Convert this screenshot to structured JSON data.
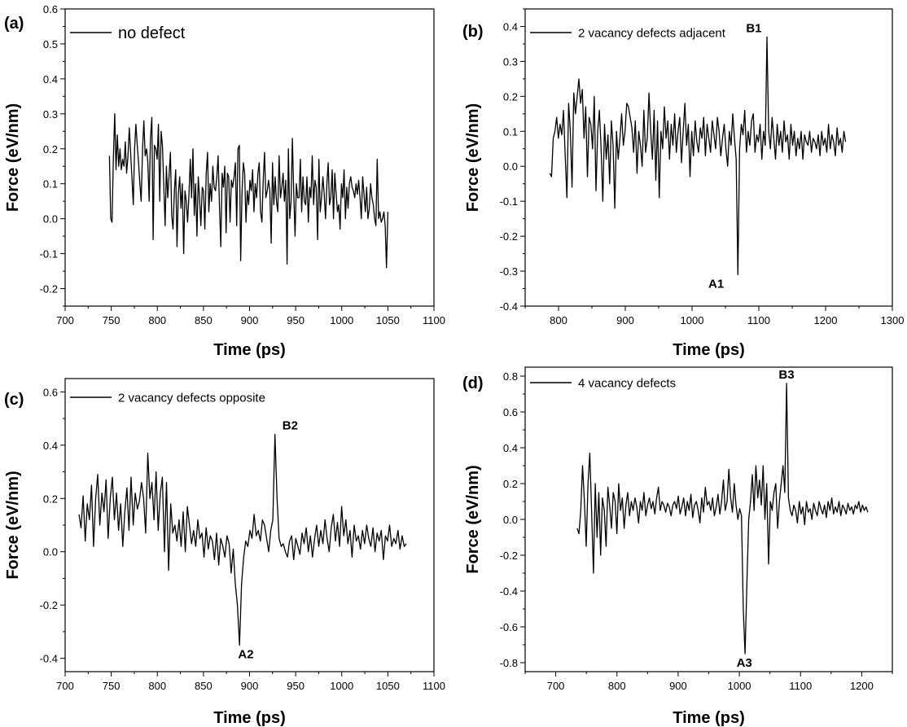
{
  "chart_data": [
    {
      "type": "line",
      "panel_label": "(a)",
      "legend": "no defect",
      "xlabel": "Time (ps)",
      "ylabel": "Force (eV/nm)",
      "xlim": [
        700,
        1100
      ],
      "ylim": [
        -0.25,
        0.6
      ],
      "xticks": [
        700,
        750,
        800,
        850,
        900,
        950,
        1000,
        1050,
        1100
      ],
      "yticks": [
        -0.2,
        -0.1,
        0.0,
        0.1,
        0.2,
        0.3,
        0.4,
        0.5,
        0.6
      ],
      "ytick_labels": [
        "-0.2",
        "-0.1",
        "0.0",
        "0.1",
        "0.2",
        "0.3",
        "0.4",
        "0.5",
        "0.6"
      ],
      "annotations": [],
      "series": [
        {
          "name": "no defect",
          "x_start": 748,
          "x_end": 1050,
          "values": [
            0.18,
            0.0,
            -0.01,
            0.17,
            0.3,
            0.14,
            0.24,
            0.15,
            0.2,
            0.14,
            0.17,
            0.15,
            0.22,
            0.13,
            0.18,
            0.26,
            0.19,
            0.12,
            0.04,
            0.2,
            0.27,
            0.21,
            0.16,
            0.1,
            0.05,
            0.2,
            0.28,
            0.18,
            0.2,
            0.16,
            0.05,
            0.23,
            0.29,
            -0.06,
            0.21,
            0.2,
            0.17,
            0.27,
            0.05,
            0.25,
            0.21,
            0.1,
            -0.02,
            0.15,
            0.06,
            0.12,
            0.19,
            0.01,
            -0.03,
            0.08,
            0.14,
            -0.08,
            0.07,
            0.12,
            0.03,
            0.1,
            -0.1,
            0.08,
            0.05,
            -0.01,
            0.07,
            0.17,
            0.06,
            0.2,
            0.01,
            0.1,
            -0.05,
            0.12,
            0.06,
            -0.02,
            0.09,
            0.08,
            -0.03,
            0.13,
            0.19,
            0.02,
            0.1,
            0.05,
            0.15,
            0.09,
            0.08,
            0.12,
            0.18,
            0.04,
            -0.08,
            0.13,
            0.09,
            0.15,
            -0.04,
            0.13,
            0.12,
            -0.01,
            0.11,
            0.09,
            0.12,
            0.16,
            -0.02,
            0.2,
            0.21,
            -0.12,
            0.07,
            0.16,
            0.13,
            -0.01,
            0.08,
            0.04,
            0.11,
            0.08,
            0.14,
            0.02,
            0.1,
            0.06,
            0.13,
            0.16,
            0.02,
            -0.01,
            0.11,
            0.19,
            0.06,
            0.08,
            0.11,
            0.08,
            -0.07,
            0.16,
            0.04,
            0.12,
            0.05,
            0.02,
            0.18,
            0.06,
            0.09,
            0.13,
            0.05,
            0.11,
            -0.13,
            0.2,
            0.0,
            0.05,
            0.23,
            0.08,
            -0.05,
            0.1,
            0.06,
            0.06,
            0.17,
            0.02,
            0.12,
            0.05,
            0.04,
            0.12,
            -0.01,
            0.09,
            0.06,
            0.18,
            0.04,
            0.11,
            0.09,
            -0.06,
            0.17,
            0.02,
            0.06,
            0.12,
            0.07,
            0.0,
            0.1,
            0.16,
            0.04,
            0.06,
            0.14,
            0.0,
            0.13,
            0.07,
            0.02,
            0.04,
            -0.03,
            0.1,
            0.06,
            0.14,
            0.0,
            0.09,
            0.03,
            0.1,
            0.12,
            0.09,
            0.08,
            0.06,
            0.1,
            0.07,
            0.11,
            0.06,
            0.0,
            0.12,
            0.07,
            0.02,
            0.09,
            0.0,
            0.03,
            0.1,
            0.06,
            0.04,
            0.0,
            -0.02,
            0.17,
            0.0,
            0.02,
            -0.01,
            0.0,
            0.02,
            -0.02,
            -0.14,
            0.02
          ]
        }
      ]
    },
    {
      "type": "line",
      "panel_label": "(b)",
      "legend": "2 vacancy defects adjacent",
      "xlabel": "Time (ps)",
      "ylabel": "Force (eV/nm)",
      "xlim": [
        750,
        1300
      ],
      "ylim": [
        -0.4,
        0.45
      ],
      "xticks": [
        800,
        900,
        1000,
        1100,
        1200,
        1300
      ],
      "yticks": [
        -0.4,
        -0.3,
        -0.2,
        -0.1,
        0.0,
        0.1,
        0.2,
        0.3,
        0.4
      ],
      "ytick_labels": [
        "-0.4",
        "-0.3",
        "-0.2",
        "-0.1",
        "0.0",
        "0.1",
        "0.2",
        "0.3",
        "0.4"
      ],
      "annotations": [
        {
          "text": "A1",
          "x": 1022,
          "y": -0.31,
          "pos": "below"
        },
        {
          "text": "B1",
          "x": 1076,
          "y": 0.37,
          "pos": "above-right"
        }
      ],
      "series": [
        {
          "name": "2 vacancy defects adjacent",
          "x_start": 787,
          "x_end": 1230,
          "values": [
            -0.02,
            -0.03,
            0.08,
            0.1,
            0.14,
            0.08,
            0.12,
            0.09,
            0.16,
            0.03,
            -0.09,
            0.18,
            0.1,
            -0.06,
            0.21,
            0.15,
            0.2,
            0.25,
            0.18,
            0.22,
            0.08,
            0.17,
            -0.03,
            0.14,
            0.12,
            0.05,
            0.2,
            -0.07,
            0.1,
            0.16,
            0.05,
            -0.1,
            0.12,
            0.02,
            0.09,
            -0.05,
            0.13,
            0.06,
            -0.12,
            0.1,
            0.02,
            0.08,
            0.15,
            0.06,
            0.1,
            0.18,
            0.17,
            0.14,
            0.11,
            0.04,
            0.13,
            -0.02,
            0.1,
            0.06,
            0.0,
            0.16,
            0.04,
            0.08,
            0.21,
            0.1,
            0.02,
            0.16,
            -0.04,
            0.13,
            -0.09,
            0.1,
            0.05,
            0.17,
            0.08,
            0.13,
            0.02,
            0.12,
            0.06,
            0.15,
            0.04,
            0.1,
            0.14,
            0.01,
            0.1,
            0.18,
            0.06,
            0.12,
            -0.03,
            0.1,
            0.03,
            0.13,
            0.07,
            0.04,
            0.11,
            0.08,
            0.14,
            0.03,
            0.12,
            0.08,
            0.04,
            0.13,
            0.09,
            0.05,
            0.14,
            0.1,
            0.03,
            0.08,
            0.12,
            0.05,
            0.0,
            0.1,
            0.06,
            0.15,
            0.08,
            0.02,
            -0.31,
            0.05,
            0.12,
            0.09,
            0.16,
            0.04,
            0.1,
            0.06,
            0.13,
            0.15,
            0.04,
            0.09,
            0.07,
            0.12,
            0.02,
            0.1,
            0.06,
            0.37,
            0.1,
            0.05,
            0.14,
            0.08,
            0.02,
            0.12,
            0.06,
            0.1,
            0.04,
            0.13,
            0.07,
            0.09,
            0.02,
            0.12,
            0.06,
            0.1,
            0.03,
            0.08,
            0.05,
            0.1,
            0.02,
            0.09,
            0.07,
            0.06,
            0.1,
            0.04,
            0.08,
            0.07,
            0.05,
            0.09,
            0.03,
            0.1,
            0.06,
            0.08,
            0.04,
            0.12,
            0.05,
            0.09,
            0.07,
            0.03,
            0.11,
            0.06,
            0.08,
            0.04,
            0.1,
            0.07
          ]
        }
      ]
    },
    {
      "type": "line",
      "panel_label": "(c)",
      "legend": "2 vacancy defects opposite",
      "xlabel": "Time (ps)",
      "ylabel": "Force (eV/nm)",
      "xlim": [
        700,
        1100
      ],
      "ylim": [
        -0.45,
        0.65
      ],
      "xticks": [
        700,
        750,
        800,
        850,
        900,
        950,
        1000,
        1050,
        1100
      ],
      "yticks": [
        -0.4,
        -0.2,
        0.0,
        0.2,
        0.4,
        0.6
      ],
      "ytick_labels": [
        "-0.4",
        "-0.2",
        "0.0",
        "0.2",
        "0.4",
        "0.6"
      ],
      "annotations": [
        {
          "text": "A2",
          "x": 884,
          "y": -0.35,
          "pos": "below-right"
        },
        {
          "text": "B2",
          "x": 932,
          "y": 0.44,
          "pos": "above-right"
        }
      ],
      "series": [
        {
          "name": "2 vacancy defects opposite",
          "x_start": 715,
          "x_end": 1070,
          "values": [
            0.14,
            0.09,
            0.21,
            0.04,
            0.18,
            0.12,
            0.25,
            0.02,
            0.2,
            0.29,
            0.1,
            0.22,
            0.15,
            0.27,
            0.05,
            0.2,
            0.28,
            0.12,
            0.22,
            0.08,
            0.18,
            0.02,
            0.15,
            0.24,
            0.08,
            0.28,
            0.1,
            0.22,
            0.16,
            0.19,
            0.26,
            0.2,
            0.07,
            0.37,
            0.2,
            0.26,
            0.12,
            0.3,
            0.08,
            0.22,
            0.28,
            0.0,
            0.26,
            -0.07,
            0.18,
            0.07,
            0.1,
            0.04,
            0.12,
            0.02,
            0.15,
            0.0,
            0.17,
            0.1,
            0.03,
            0.08,
            0.02,
            0.12,
            0.05,
            0.07,
            -0.02,
            0.09,
            0.01,
            0.06,
            0.04,
            -0.03,
            0.07,
            -0.05,
            0.05,
            0.02,
            -0.02,
            0.06,
            0.03,
            -0.08,
            0.01,
            -0.12,
            -0.2,
            -0.35,
            -0.12,
            -0.02,
            0.04,
            0.02,
            0.08,
            0.05,
            0.14,
            0.06,
            0.08,
            0.04,
            0.12,
            0.1,
            0.05,
            0.0,
            0.08,
            0.12,
            0.44,
            0.2,
            0.05,
            0.02,
            0.03,
            0.0,
            -0.02,
            0.04,
            0.06,
            -0.03,
            0.05,
            0.02,
            -0.01,
            0.07,
            0.03,
            0.09,
            0.0,
            0.06,
            -0.02,
            0.05,
            0.1,
            0.02,
            0.08,
            0.03,
            0.12,
            0.05,
            0.0,
            0.09,
            0.14,
            0.04,
            0.11,
            0.02,
            0.17,
            0.06,
            0.12,
            0.03,
            0.08,
            -0.02,
            0.1,
            0.04,
            0.06,
            0.01,
            0.08,
            0.03,
            0.1,
            0.05,
            0.02,
            0.09,
            0.0,
            0.07,
            0.04,
            0.08,
            -0.03,
            0.06,
            0.04,
            0.1,
            0.02,
            0.05,
            0.03,
            0.08,
            0.01,
            0.06,
            0.02,
            0.03
          ]
        }
      ]
    },
    {
      "type": "line",
      "panel_label": "(d)",
      "legend": "4 vacancy defects",
      "xlabel": "Time (ps)",
      "ylabel": "Force (eV/nm)",
      "xlim": [
        650,
        1250
      ],
      "ylim": [
        -0.85,
        0.85
      ],
      "xticks": [
        700,
        800,
        900,
        1000,
        1100,
        1200
      ],
      "yticks": [
        -0.8,
        -0.6,
        -0.4,
        -0.2,
        0.0,
        0.2,
        0.4,
        0.6,
        0.8
      ],
      "ytick_labels": [
        "-0.8",
        "-0.6",
        "-0.4",
        "-0.2",
        "0.0",
        "0.2",
        "0.4",
        "0.6",
        "0.8"
      ],
      "annotations": [
        {
          "text": "A3",
          "x": 990,
          "y": -0.75,
          "pos": "below-right"
        },
        {
          "text": "B3",
          "x": 1059,
          "y": 0.76,
          "pos": "above-right"
        }
      ],
      "series": [
        {
          "name": "4 vacancy defects",
          "x_start": 735,
          "x_end": 1210,
          "values": [
            -0.05,
            -0.08,
            0.05,
            0.3,
            0.1,
            -0.15,
            0.2,
            0.37,
            0.05,
            -0.3,
            0.2,
            -0.1,
            0.15,
            -0.2,
            0.12,
            0.05,
            -0.15,
            0.18,
            0.08,
            -0.05,
            0.15,
            0.1,
            -0.08,
            0.2,
            0.05,
            0.12,
            -0.05,
            0.08,
            0.15,
            0.02,
            0.1,
            0.05,
            0.12,
            0.07,
            -0.02,
            0.1,
            0.05,
            0.15,
            0.02,
            0.08,
            0.12,
            0.06,
            0.1,
            0.03,
            0.12,
            0.18,
            0.05,
            0.1,
            0.08,
            0.04,
            0.09,
            0.07,
            0.02,
            0.08,
            0.1,
            0.06,
            0.13,
            0.03,
            0.07,
            0.12,
            0.02,
            0.1,
            0.05,
            0.14,
            0.01,
            0.08,
            0.1,
            0.05,
            -0.02,
            0.12,
            0.04,
            0.18,
            0.08,
            0.1,
            0.05,
            0.12,
            0.02,
            0.07,
            0.14,
            0.03,
            0.1,
            0.22,
            0.05,
            0.1,
            0.28,
            0.12,
            0.04,
            0.2,
            0.08,
            0.0,
            0.06,
            0.02,
            -0.5,
            -0.75,
            -0.35,
            0.0,
            0.1,
            0.25,
            0.05,
            0.3,
            0.12,
            0.22,
            0.08,
            0.3,
            0.0,
            0.2,
            -0.25,
            0.1,
            0.05,
            0.15,
            0.2,
            -0.05,
            0.1,
            0.2,
            0.3,
            0.15,
            0.76,
            0.12,
            0.05,
            0.02,
            0.08,
            0.05,
            -0.02,
            0.1,
            0.03,
            0.07,
            -0.03,
            0.1,
            0.04,
            0.06,
            0.0,
            0.09,
            0.05,
            0.02,
            0.1,
            0.06,
            0.03,
            0.08,
            0.01,
            0.1,
            0.05,
            0.12,
            0.03,
            0.07,
            0.04,
            0.1,
            0.02,
            0.08,
            0.06,
            0.03,
            0.09,
            0.05,
            0.07,
            0.03,
            0.08,
            0.06,
            0.1,
            0.04,
            0.08,
            0.05,
            0.07,
            0.04
          ]
        }
      ]
    }
  ]
}
